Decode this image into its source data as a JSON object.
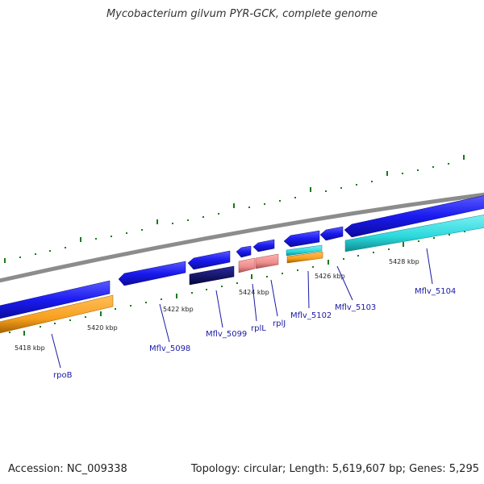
{
  "title": "Mycobacterium gilvum PYR-GCK, complete genome",
  "footer": {
    "accession": "Accession: NC_009338",
    "stats": "Topology: circular; Length: 5,619,607 bp; Genes: 5,295"
  },
  "colors": {
    "backbone": "#8c8c8c",
    "cds_blue": "#1a1af0",
    "cds_dark": "#0a0a70",
    "gene_orange": "#f7a01e",
    "gene_pink": "#ee8c8c",
    "gene_cyan": "#2ad8dc",
    "tick": "#1a7a1a",
    "label": "#1a1aa6"
  },
  "tick_labels": [
    "5418 kbp",
    "5420 kbp",
    "5422 kbp",
    "5424 kbp",
    "5426 kbp",
    "5428 kbp"
  ],
  "gene_labels": [
    "rpoB",
    "Mflv_5098",
    "Mflv_5099",
    "rplL",
    "rplJ",
    "Mflv_5102",
    "Mflv_5103",
    "Mflv_5104"
  ]
}
